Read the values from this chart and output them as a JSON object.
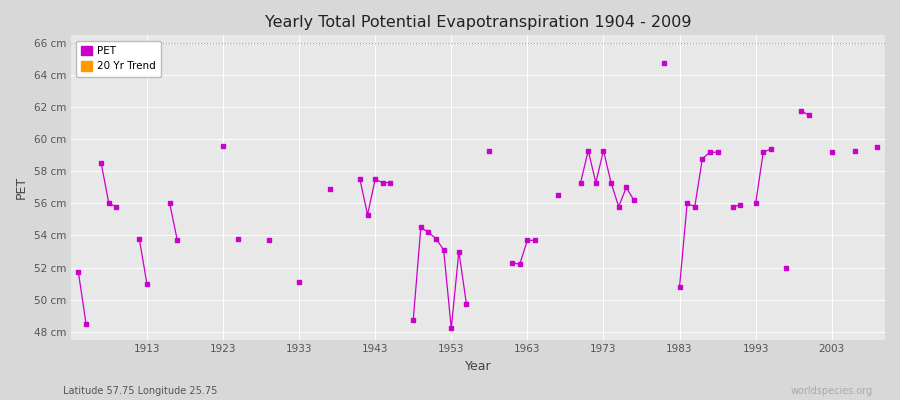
{
  "title": "Yearly Total Potential Evapotranspiration 1904 - 2009",
  "xlabel": "Year",
  "ylabel": "PET",
  "subtitle_left": "Latitude 57.75 Longitude 25.75",
  "subtitle_right": "worldspecies.org",
  "ylim": [
    47.5,
    66.5
  ],
  "xlim": [
    1903,
    2010
  ],
  "yticks": [
    48,
    50,
    52,
    54,
    56,
    58,
    60,
    62,
    64,
    66
  ],
  "ytick_labels": [
    "48 cm",
    "50 cm",
    "52 cm",
    "54 cm",
    "56 cm",
    "58 cm",
    "60 cm",
    "62 cm",
    "64 cm",
    "66 cm"
  ],
  "xticks": [
    1913,
    1923,
    1933,
    1943,
    1953,
    1963,
    1973,
    1983,
    1993,
    2003
  ],
  "pet_color": "#cc00cc",
  "trend_color": "#ff9900",
  "background_color": "#d8d8d8",
  "plot_bg_color": "#e8e8e8",
  "grid_color": "#ffffff",
  "top_line_y": 66,
  "years": [
    1904,
    1905,
    1907,
    1908,
    1909,
    1912,
    1913,
    1916,
    1917,
    1923,
    1925,
    1929,
    1933,
    1937,
    1941,
    1942,
    1943,
    1944,
    1945,
    1948,
    1949,
    1950,
    1951,
    1952,
    1953,
    1954,
    1955,
    1958,
    1961,
    1962,
    1963,
    1964,
    1967,
    1970,
    1971,
    1972,
    1973,
    1974,
    1975,
    1976,
    1977,
    1981,
    1983,
    1984,
    1985,
    1986,
    1987,
    1988,
    1990,
    1991,
    1993,
    1994,
    1995,
    1997,
    1999,
    2000,
    2003,
    2006,
    2009
  ],
  "pet_values": [
    51.7,
    48.5,
    58.5,
    56.0,
    55.8,
    53.8,
    51.0,
    56.0,
    53.7,
    59.6,
    53.8,
    53.7,
    51.1,
    56.9,
    57.5,
    55.3,
    57.5,
    57.3,
    57.3,
    48.7,
    54.5,
    54.2,
    53.8,
    53.1,
    48.2,
    53.0,
    49.7,
    59.3,
    52.3,
    52.2,
    53.7,
    53.7,
    56.5,
    57.3,
    59.3,
    57.3,
    59.3,
    57.3,
    55.8,
    57.0,
    56.2,
    64.8,
    50.8,
    56.0,
    55.8,
    58.8,
    59.2,
    59.2,
    55.8,
    55.9,
    56.0,
    59.2,
    59.4,
    52.0,
    61.8,
    61.5,
    59.2,
    59.3,
    59.5
  ]
}
